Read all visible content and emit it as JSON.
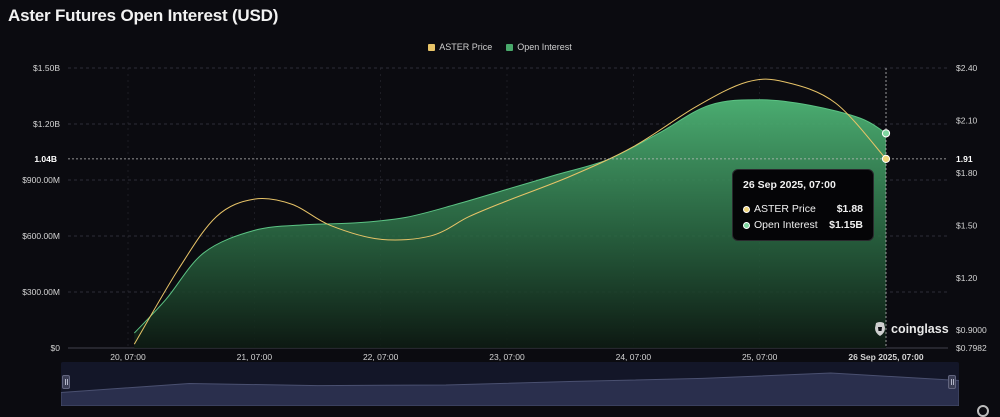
{
  "chart_data": {
    "type": "area",
    "title": "Aster Futures Open Interest (USD)",
    "legend": [
      {
        "name": "ASTER Price",
        "color": "#e8c468"
      },
      {
        "name": "Open Interest",
        "color": "#49a96b"
      }
    ],
    "legend_position": "top-center",
    "grid": true,
    "x_ticks": [
      "20, 07:00",
      "21, 07:00",
      "22, 07:00",
      "23, 07:00",
      "24, 07:00",
      "25, 07:00",
      "26 Sep 2025, 07:00"
    ],
    "y_left": {
      "ticks": [
        0,
        300,
        600,
        900,
        1200,
        1500
      ],
      "tick_labels": [
        "$0",
        "$300.00M",
        "$600.00M",
        "$900.00M",
        "$1.20B",
        "$1.50B"
      ],
      "unit": "millions USD",
      "ylim": [
        0,
        1500
      ]
    },
    "y_right": {
      "ticks": [
        0.7982,
        0.9,
        1.2,
        1.5,
        1.8,
        2.1,
        2.4
      ],
      "tick_labels": [
        "$0.7982",
        "$0.9000",
        "$1.20",
        "$1.50",
        "$1.80",
        "$2.10",
        "$2.40"
      ],
      "ylim": [
        0.7982,
        2.4
      ]
    },
    "series": [
      {
        "name": "Open Interest",
        "axis": "left",
        "color": "#49a96b",
        "x": [
          0.05,
          0.3,
          0.6,
          1.0,
          1.4,
          1.8,
          2.2,
          2.6,
          3.0,
          3.4,
          3.8,
          4.2,
          4.6,
          5.0,
          5.4,
          5.8,
          6.0
        ],
        "values": [
          80,
          260,
          510,
          630,
          660,
          670,
          700,
          770,
          850,
          930,
          1010,
          1150,
          1300,
          1330,
          1300,
          1230,
          1150
        ]
      },
      {
        "name": "ASTER Price",
        "axis": "right",
        "color": "#e8c468",
        "x": [
          0.05,
          0.4,
          0.7,
          1.0,
          1.3,
          1.6,
          2.0,
          2.4,
          2.7,
          3.0,
          3.5,
          4.0,
          4.5,
          4.9,
          5.2,
          5.6,
          6.0
        ],
        "values": [
          0.82,
          1.25,
          1.55,
          1.65,
          1.62,
          1.5,
          1.42,
          1.44,
          1.55,
          1.64,
          1.78,
          1.95,
          2.18,
          2.32,
          2.32,
          2.2,
          1.88
        ]
      }
    ],
    "crosshair": {
      "x": 6.0,
      "left_label": "1.04B",
      "right_label": "1.91"
    },
    "tooltip": {
      "date": "26 Sep 2025, 07:00",
      "rows": [
        {
          "name": "ASTER Price",
          "value": "$1.88",
          "dot_color": "#f0d47a"
        },
        {
          "name": "Open Interest",
          "value": "$1.15B",
          "dot_color": "#7fd6a0"
        }
      ]
    },
    "watermark": "coinglass",
    "navigator": {
      "values": [
        0.25,
        0.55,
        0.48,
        0.5,
        0.62,
        0.72,
        0.9,
        0.65
      ]
    }
  }
}
